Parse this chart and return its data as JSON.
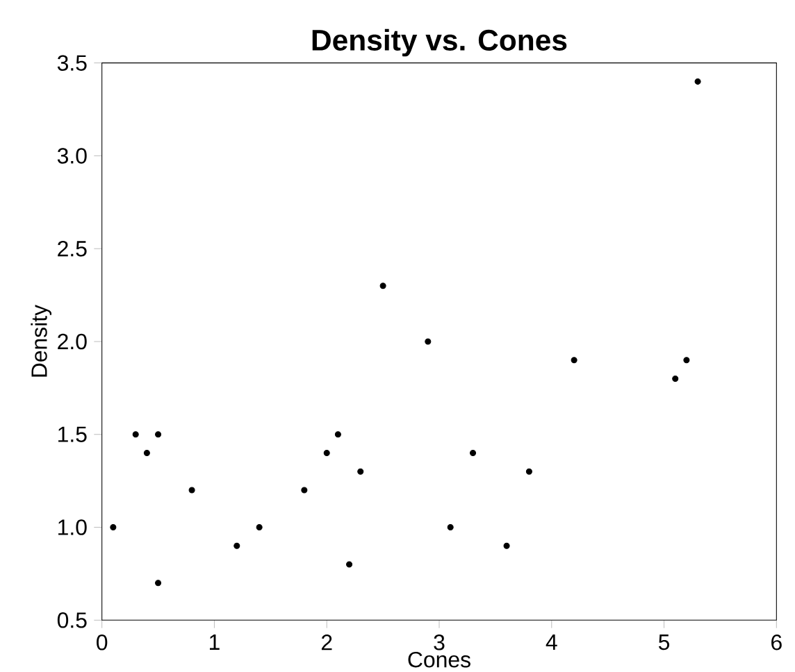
{
  "chart_data": {
    "type": "scatter",
    "title": "Density vs. Cones",
    "xlabel": "Cones",
    "ylabel": "Density",
    "x": [
      0.1,
      0.3,
      0.4,
      0.5,
      0.5,
      0.8,
      1.2,
      1.4,
      1.8,
      2.0,
      2.1,
      2.2,
      2.3,
      2.5,
      2.9,
      3.1,
      3.3,
      3.6,
      3.8,
      4.2,
      5.1,
      5.2,
      5.3
    ],
    "values": [
      1.0,
      1.5,
      1.4,
      1.5,
      0.7,
      1.2,
      0.9,
      1.0,
      1.2,
      1.4,
      1.5,
      0.8,
      1.3,
      2.3,
      2.0,
      1.0,
      1.4,
      0.9,
      1.3,
      1.9,
      1.8,
      1.9,
      3.4
    ],
    "color": "#000000",
    "grid": false,
    "xlim": [
      0,
      6
    ],
    "ylim": [
      0.5,
      3.5
    ],
    "xticks": [
      0,
      1,
      2,
      3,
      4,
      5,
      6
    ],
    "yticks": [
      0.5,
      {
        "value": 1.0,
        "label": "1.0"
      },
      1.5,
      {
        "value": 2.0,
        "label": "2.0"
      },
      2.5,
      {
        "value": 3.0,
        "label": "3.0"
      },
      3.5
    ]
  }
}
